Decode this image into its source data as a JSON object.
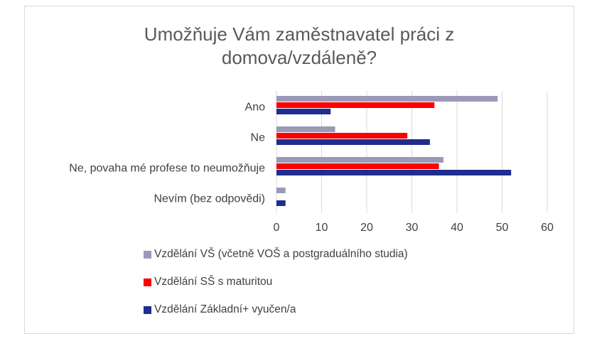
{
  "chart_data": {
    "type": "bar",
    "orientation": "horizontal",
    "title_lines": [
      "Umožňuje Vám zaměstnavatel práci z",
      "domova/vzdáleně?"
    ],
    "categories": [
      "Ano",
      "Ne",
      "Ne, povaha mé profese to neumožňuje",
      "Nevím (bez odpovědi)"
    ],
    "series": [
      {
        "name": "Vzdělání VŠ (včetně VOŠ a postgraduálního studia)",
        "color": "#9b99b8",
        "values": [
          49,
          13,
          37,
          2
        ]
      },
      {
        "name": "Vzdělání SŠ s maturitou",
        "color": "#ff0000",
        "values": [
          35,
          29,
          36,
          0
        ]
      },
      {
        "name": "Vzdělání Základní+ vyučen/a",
        "color": "#1f2d8f",
        "values": [
          12,
          34,
          52,
          2
        ]
      }
    ],
    "xlim": [
      0,
      60
    ],
    "xticks": [
      0,
      10,
      20,
      30,
      40,
      50,
      60
    ],
    "grid": true,
    "legend_position": "bottom"
  }
}
